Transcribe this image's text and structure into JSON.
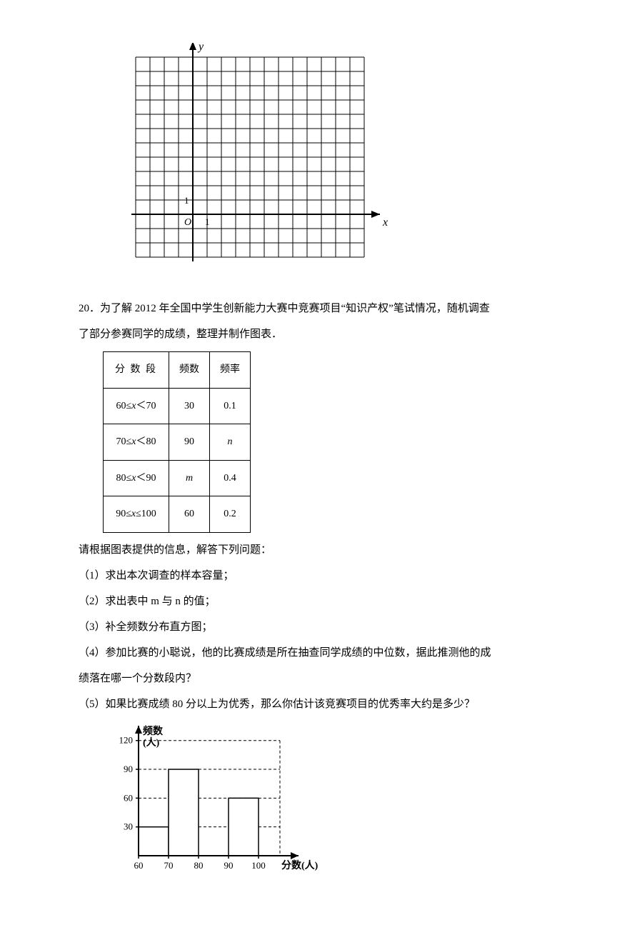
{
  "coord_grid": {
    "cols": 16,
    "rows": 14,
    "cell": 20,
    "origin_col": 4,
    "origin_row_from_top": 11,
    "stroke": "#000000",
    "y_label": "y",
    "x_label": "x",
    "origin_label": "O",
    "tick_label_x": "1",
    "tick_label_y": "1"
  },
  "problem": {
    "number": "20．",
    "text_line1": "为了解 2012 年全国中学生创新能力大赛中竞赛项目“知识产权”笔试情况，随机调查",
    "text_line2": "了部分参赛同学的成绩，整理并制作图表．",
    "after_table": "请根据图表提供的信息，解答下列问题：",
    "q1": "（1）求出本次调查的样本容量；",
    "q2": "（2）求出表中 m 与 n 的值；",
    "q3": "（3）补全频数分布直方图；",
    "q4a": "（4）参加比赛的小聪说，他的比赛成绩是所在抽查同学成绩的中位数，据此推测他的成",
    "q4b": "绩落在哪一个分数段内？",
    "q5": "（5）如果比赛成绩 80 分以上为优秀，那么你估计该竞赛项目的优秀率大约是多少？"
  },
  "table": {
    "headers": {
      "seg": "分 数 段",
      "freq": "频数",
      "rate": "频率"
    },
    "rows": [
      {
        "seg": "60≤x＜70",
        "freq": "30",
        "rate": "0.1"
      },
      {
        "seg": "70≤x＜80",
        "freq": "90",
        "rate": "n"
      },
      {
        "seg": "80≤x＜90",
        "freq": "m",
        "rate": "0.4"
      },
      {
        "seg": "90≤x≤100",
        "freq": "60",
        "rate": "0.2"
      }
    ]
  },
  "histogram": {
    "y_title": "频数\n(人)",
    "x_title": "分数(人)",
    "y_ticks": [
      30,
      60,
      90,
      120
    ],
    "x_ticks": [
      60,
      70,
      80,
      90,
      100
    ],
    "y_max": 125,
    "bar_width_units": 1,
    "bars": [
      {
        "x0": 60,
        "x1": 70,
        "h": 30
      },
      {
        "x0": 70,
        "x1": 80,
        "h": 90
      },
      {
        "x0": 90,
        "x1": 100,
        "h": 60
      }
    ],
    "dash_targets": [
      30,
      60,
      90,
      120
    ],
    "stroke": "#000000",
    "dash": "4 3"
  }
}
